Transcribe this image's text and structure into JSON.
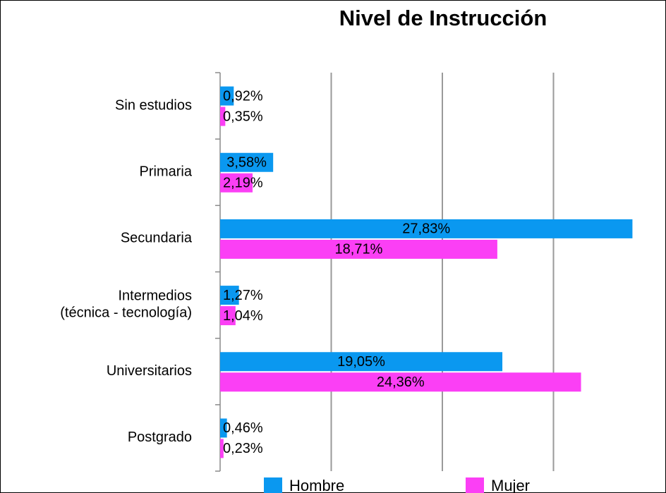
{
  "chart_data": {
    "type": "bar",
    "orientation": "horizontal",
    "title": "Nivel de Instrucción",
    "categories": [
      "Sin estudios",
      "Primaria",
      "Secundaria",
      "Intermedios\n(técnica - tecnología)",
      "Universitarios",
      "Postgrado"
    ],
    "series": [
      {
        "name": "Hombre",
        "color": "#0a98f0",
        "values": [
          0.92,
          3.58,
          27.83,
          1.27,
          19.05,
          0.46
        ],
        "value_labels": [
          "0,92%",
          "3,58%",
          "27,83%",
          "1,27%",
          "19,05%",
          "0,46%"
        ]
      },
      {
        "name": "Mujer",
        "color": "#fb3ff5",
        "values": [
          0.35,
          2.19,
          18.71,
          1.04,
          24.36,
          0.23
        ],
        "value_labels": [
          "0,35%",
          "2,19%",
          "18,71%",
          "1,04%",
          "24,36%",
          "0,23%"
        ]
      }
    ],
    "xlim": [
      0,
      30
    ],
    "xticks": [
      0,
      7.5,
      15,
      22.5,
      30
    ],
    "grid": true,
    "legend": "bottom"
  }
}
